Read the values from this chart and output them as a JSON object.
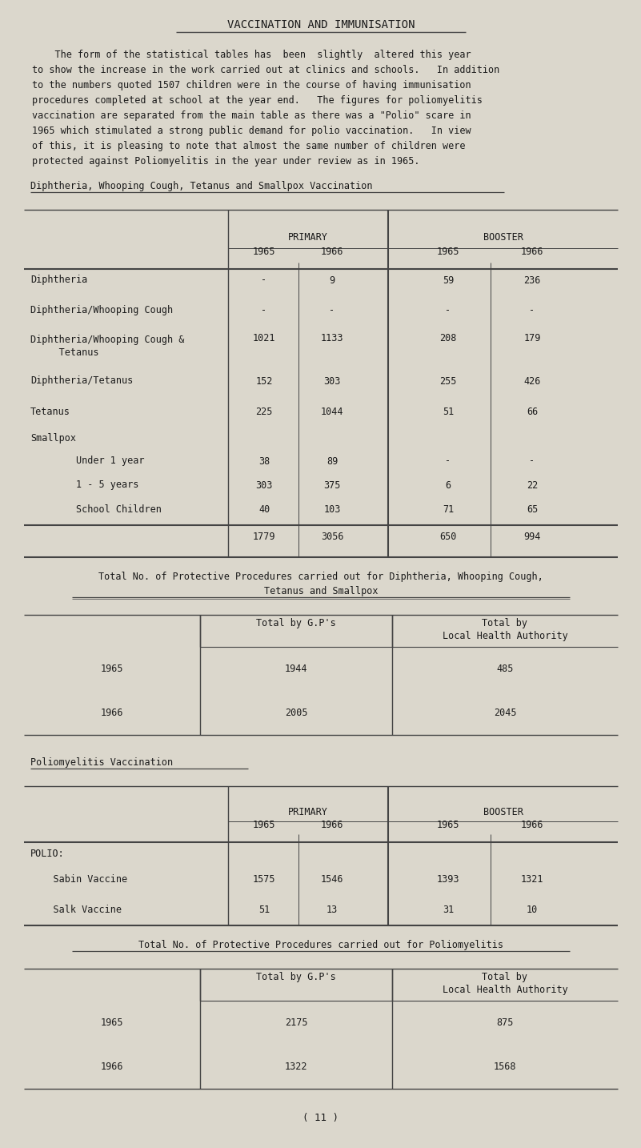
{
  "title": "VACCINATION AND IMMUNISATION",
  "bg_color": "#dbd7cc",
  "text_color": "#1a1a1a",
  "intro_text": [
    "    The form of the statistical tables has  been  slightly  altered this year",
    "to show the increase in the work carried out at clinics and schools.   In addition",
    "to the numbers quoted 1507 children were in the course of having immunisation",
    "procedures completed at school at the year end.   The figures for poliomyelitis",
    "vaccination are separated from the main table as there was a \"Polio\" scare in",
    "1965 which stimulated a strong public demand for polio vaccination.   In view",
    "of this, it is pleasing to note that almost the same number of children were",
    "protected against Poliomyelitis in the year under review as in 1965."
  ],
  "section1_title": "Diphtheria, Whooping Cough, Tetanus and Smallpox Vaccination",
  "table1_rows": [
    [
      "Diphtheria",
      "-",
      "9",
      "59",
      "236"
    ],
    [
      "Diphtheria/Whooping Cough",
      "-",
      "-",
      "-",
      "-"
    ],
    [
      "Diphtheria/Whooping Cough &",
      "1021",
      "1133",
      "208",
      "179"
    ],
    [
      "  Tetanus",
      "",
      "",
      "",
      ""
    ],
    [
      "Diphtheria/Tetanus",
      "152",
      "303",
      "255",
      "426"
    ],
    [
      "Tetanus",
      "225",
      "1044",
      "51",
      "66"
    ],
    [
      "Smallpox",
      "",
      "",
      "",
      ""
    ],
    [
      "        Under 1 year",
      "38",
      "89",
      "-",
      "-"
    ],
    [
      "        1 - 5 years",
      "303",
      "375",
      "6",
      "22"
    ],
    [
      "        School Children",
      "40",
      "103",
      "71",
      "65"
    ],
    [
      "",
      "1779",
      "3056",
      "650",
      "994"
    ]
  ],
  "table1_row_merged": [
    2,
    3
  ],
  "section1_caption_line1": "Total No. of Protective Procedures carried out for Diphtheria, Whooping Cough,",
  "section1_caption_line2": "Tetanus and Smallpox",
  "table2_col1_header": "Total by G.P's",
  "table2_col2_header_line1": "Total by",
  "table2_col2_header_line2": "Local Health Authority",
  "table2_rows": [
    [
      "1965",
      "1944",
      "485"
    ],
    [
      "1966",
      "2005",
      "2045"
    ]
  ],
  "section2_title": "Poliomyelitis Vaccination",
  "table3_rows": [
    [
      "POLIO:",
      "",
      "",
      "",
      ""
    ],
    [
      "  Sabin Vaccine",
      "1575",
      "1546",
      "1393",
      "1321"
    ],
    [
      "  Salk Vaccine",
      "51",
      "13",
      "31",
      "10"
    ]
  ],
  "section2_caption": "Total No. of Protective Procedures carried out for Poliomyelitis",
  "table4_col1_header": "Total by G.P's",
  "table4_col2_header_line1": "Total by",
  "table4_col2_header_line2": "Local Health Authority",
  "table4_rows": [
    [
      "1965",
      "2175",
      "875"
    ],
    [
      "1966",
      "1322",
      "1568"
    ]
  ],
  "footer": "( 11 )"
}
